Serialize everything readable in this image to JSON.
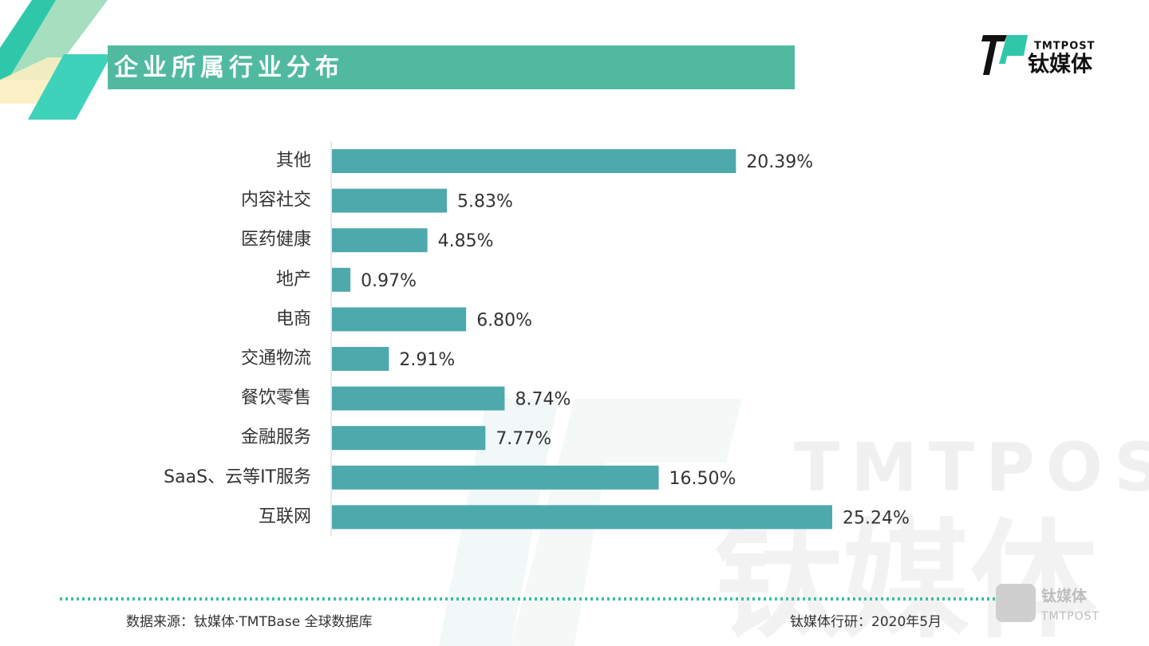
{
  "header": {
    "logo_en": "TMTPOST",
    "logo_cn": "钛媒体"
  },
  "chart_data": {
    "type": "bar",
    "orientation": "horizontal",
    "title": "企业所属行业分布",
    "categories": [
      "其他",
      "内容社交",
      "医药健康",
      "地产",
      "电商",
      "交通物流",
      "餐饮零售",
      "金融服务",
      "SaaS、云等IT服务",
      "互联网"
    ],
    "values": [
      20.39,
      5.83,
      4.85,
      0.97,
      6.8,
      2.91,
      8.74,
      7.77,
      16.5,
      25.24
    ],
    "value_labels": [
      "20.39%",
      "5.83%",
      "4.85%",
      "0.97%",
      "6.80%",
      "2.91%",
      "8.74%",
      "7.77%",
      "16.50%",
      "25.24%"
    ],
    "color": "#4ea9ad"
  },
  "watermark": {
    "en": "TMTPOST",
    "cn": "钛媒体"
  },
  "footer": {
    "source": "数据来源：钛媒体·TMTBase 全球数据库",
    "credit": "钛媒体行研：2020年5月",
    "logo_cn": "钛媒体",
    "logo_en": "TMTPOST"
  }
}
